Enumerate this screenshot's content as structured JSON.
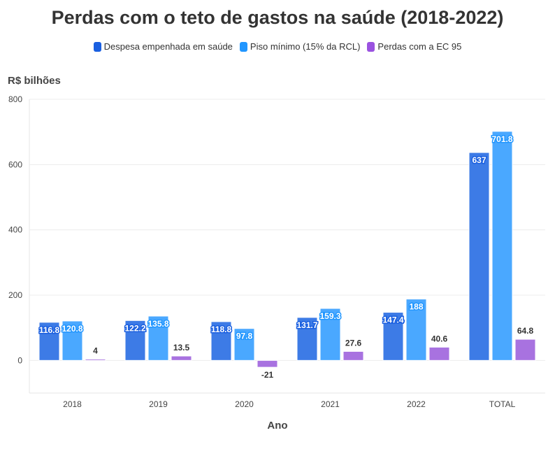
{
  "chart_data": {
    "type": "bar",
    "title": "Perdas com o teto de gastos na saúde (2018-2022)",
    "ylabel": "R$ bilhões",
    "xlabel": "Ano",
    "ylim": [
      -100,
      800
    ],
    "yticks": [
      0,
      200,
      400,
      600,
      800
    ],
    "categories": [
      "2018",
      "2019",
      "2020",
      "2021",
      "2022",
      "TOTAL"
    ],
    "legend_position": "top-center",
    "grid": true,
    "series": [
      {
        "name": "Despesa empenhada em saúde",
        "color": "#3d7be6",
        "legend_color": "#1a5fe0",
        "values": [
          116.8,
          122.2,
          118.8,
          131.7,
          147.4,
          637
        ]
      },
      {
        "name": "Piso mínimo (15% da RCL)",
        "color": "#4aa8ff",
        "legend_color": "#2196ff",
        "values": [
          120.8,
          135.8,
          97.8,
          159.3,
          188,
          701.8
        ]
      },
      {
        "name": "Perdas com a EC 95",
        "color": "#a872e0",
        "legend_color": "#9a52e0",
        "values": [
          4,
          13.5,
          -21,
          27.6,
          40.6,
          64.8
        ]
      }
    ]
  }
}
